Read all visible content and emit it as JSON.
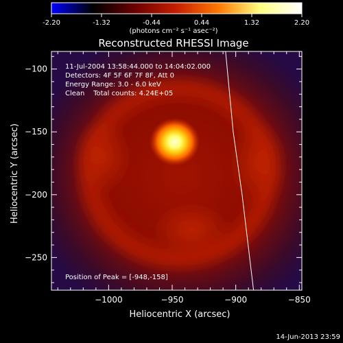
{
  "colorbar": {
    "tick_labels": [
      "-2.20",
      "-1.32",
      "-0.44",
      "0.44",
      "1.32",
      "2.20"
    ],
    "unit_label": "(photons cm⁻² s⁻¹ asec⁻²)",
    "range": [
      -2.2,
      2.2
    ],
    "stops": [
      "#0000ff",
      "#000000",
      "#6a0000",
      "#c81e00",
      "#ff7800",
      "#ffff80",
      "#ffffff"
    ]
  },
  "chart_data": {
    "type": "heatmap",
    "title": "Reconstructed RHESSI Image",
    "xlabel": "Heliocentric X (arcsec)",
    "ylabel": "Heliocentric Y (arcsec)",
    "xlim": [
      -1045,
      -848
    ],
    "ylim": [
      -276,
      -86
    ],
    "x_ticks": [
      -1000,
      -950,
      -900,
      -850
    ],
    "x_tick_labels": [
      "−1000",
      "−950",
      "−900",
      "−850"
    ],
    "y_ticks": [
      -100,
      -150,
      -200,
      -250
    ],
    "y_tick_labels": [
      "−100",
      "−150",
      "−200",
      "−250"
    ],
    "annotations": [
      "11-Jul-2004 13:58:44.000 to 14:04:02.000",
      "Detectors: 4F 5F 6F 7F 8F, Att 0",
      "Energy Range: 3.0 - 6.0 keV",
      "Clean    Total counts: 4.24E+05"
    ],
    "peak_label": "Position of Peak = [-948,-158]",
    "peak": [
      -948,
      -158
    ],
    "limb_curve": [
      [
        -908,
        -86
      ],
      [
        -902,
        -150
      ],
      [
        -895,
        -200
      ],
      [
        -886,
        -276
      ]
    ]
  },
  "footer": {
    "date": "14-Jun-2013 23:59"
  }
}
